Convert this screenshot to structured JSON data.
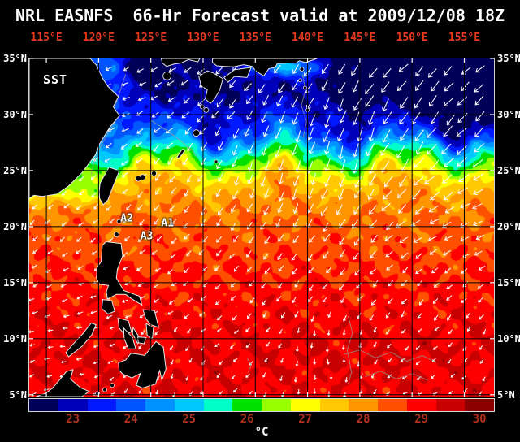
{
  "title": "NRL EASNFS  66-Hr Forecast valid at 2009/12/08 18Z",
  "colors": {
    "background": "#000000",
    "title_text": "#ffffff",
    "lon_label": "#e8381f",
    "lat_label": "#ffffff",
    "grid_line": "#000000",
    "frame": "#cfcfcf",
    "land": "#000000",
    "coastline": "#e9e9e9",
    "vector": "#ffffff",
    "annotation_text": "#ffffff",
    "colorbar_tick": "#b03020",
    "unit_label": "#ffffff",
    "bathymetry": "#9a9a9a"
  },
  "map": {
    "label_sst": "SST"
  },
  "chart_data": {
    "type": "heatmap",
    "title": "NRL EASNFS 66-Hr Forecast valid at 2009/12/08 18Z",
    "model": "NRL EASNFS",
    "forecast_hour": "66-Hr",
    "valid_time": "2009/12/08 18Z",
    "variable": "SST",
    "units": "°C",
    "lon_range": [
      113.36,
      157.84
    ],
    "lat_range": [
      4.84,
      35
    ],
    "lon_ticks": [
      115,
      120,
      125,
      130,
      135,
      140,
      145,
      150,
      155
    ],
    "lon_tick_labels": [
      "115°E",
      "120°E",
      "125°E",
      "130°E",
      "135°E",
      "140°E",
      "145°E",
      "150°E",
      "155°E"
    ],
    "lat_ticks": [
      35,
      30,
      25,
      20,
      15,
      10,
      5
    ],
    "lat_tick_labels": [
      "35°N",
      "30°N",
      "25°N",
      "20°N",
      "15°N",
      "10°N",
      "5°N"
    ],
    "colorbar": {
      "min": 22.25,
      "max": 30.25,
      "step": 0.5,
      "unit": "°C",
      "ticks": [
        23,
        24,
        25,
        26,
        27,
        28,
        29,
        30
      ],
      "colors": [
        "#000059",
        "#0000b8",
        "#0019ff",
        "#0055ff",
        "#0092ff",
        "#00c8ff",
        "#00ffc8",
        "#00e100",
        "#96ff00",
        "#ffff00",
        "#ffc800",
        "#ff9600",
        "#ff5000",
        "#ff0000",
        "#c80000",
        "#8c0000"
      ]
    },
    "sst_profile": {
      "lat": [
        35,
        33,
        31,
        29,
        28,
        27,
        26,
        25,
        24,
        22.5,
        20,
        17,
        13,
        9,
        4.84
      ],
      "temp": [
        22.4,
        22.6,
        23.0,
        23.6,
        24.1,
        25.1,
        26.1,
        26.9,
        27.5,
        28.0,
        28.4,
        28.7,
        29.0,
        29.25,
        29.15
      ]
    },
    "annotations": [
      {
        "label": "A1",
        "lon": 126.6,
        "lat": 20.3
      },
      {
        "label": "A2",
        "lon": 122.7,
        "lat": 20.7
      },
      {
        "label": "A3",
        "lon": 124.6,
        "lat": 19.1
      }
    ],
    "wind": {
      "pattern": "northeast-monsoon",
      "grid_spacing_px": 19
    },
    "land_polygons": [
      {
        "name": "china",
        "points": [
          [
            113.36,
            35
          ],
          [
            119.2,
            35
          ],
          [
            119.8,
            34.4
          ],
          [
            120.4,
            33.2
          ],
          [
            120.9,
            32.5
          ],
          [
            121.9,
            31.6
          ],
          [
            121.4,
            30.7
          ],
          [
            122.0,
            29.9
          ],
          [
            121.1,
            28.9
          ],
          [
            120.1,
            27.4
          ],
          [
            119.7,
            26.4
          ],
          [
            118.4,
            24.8
          ],
          [
            117.1,
            23.6
          ],
          [
            116.0,
            22.9
          ],
          [
            114.6,
            22.7
          ],
          [
            113.8,
            22.8
          ],
          [
            113.36,
            22.5
          ]
        ]
      },
      {
        "name": "korea",
        "points": [
          [
            126.0,
            35
          ],
          [
            129.7,
            35
          ],
          [
            129.5,
            34.7
          ],
          [
            128.6,
            34.9
          ],
          [
            127.9,
            34.6
          ],
          [
            127.2,
            34.5
          ],
          [
            126.5,
            34.3
          ],
          [
            126.1,
            34.6
          ]
        ]
      },
      {
        "name": "kyushu",
        "points": [
          [
            129.6,
            33.4
          ],
          [
            130.4,
            33.9
          ],
          [
            131.0,
            33.7
          ],
          [
            131.9,
            33.2
          ],
          [
            131.6,
            32.2
          ],
          [
            131.1,
            31.4
          ],
          [
            130.7,
            31.0
          ],
          [
            130.2,
            31.4
          ],
          [
            130.4,
            32.2
          ],
          [
            129.8,
            32.6
          ]
        ]
      },
      {
        "name": "shikoku",
        "points": [
          [
            132.0,
            33.3
          ],
          [
            133.0,
            34.0
          ],
          [
            134.6,
            34.2
          ],
          [
            134.2,
            33.3
          ],
          [
            133.0,
            33.4
          ],
          [
            132.4,
            32.9
          ]
        ]
      },
      {
        "name": "honshu",
        "points": [
          [
            130.9,
            35
          ],
          [
            140.9,
            35
          ],
          [
            140.6,
            34.9
          ],
          [
            139.8,
            34.65
          ],
          [
            139.2,
            34.8
          ],
          [
            138.9,
            34.6
          ],
          [
            138.3,
            34.6
          ],
          [
            137.1,
            34.55
          ],
          [
            136.9,
            34.2
          ],
          [
            136.3,
            34.1
          ],
          [
            135.8,
            33.45
          ],
          [
            135.1,
            33.85
          ],
          [
            134.7,
            34.3
          ],
          [
            133.9,
            34.45
          ],
          [
            132.9,
            34.25
          ],
          [
            132.1,
            34.3
          ],
          [
            131.3,
            34.35
          ],
          [
            130.9,
            34.65
          ]
        ]
      },
      {
        "name": "taiwan",
        "points": [
          [
            120.05,
            23.1
          ],
          [
            120.15,
            23.9
          ],
          [
            121.0,
            25.3
          ],
          [
            121.65,
            25.1
          ],
          [
            121.95,
            24.9
          ],
          [
            121.3,
            23.4
          ],
          [
            120.9,
            22.4
          ],
          [
            120.45,
            21.95
          ],
          [
            120.1,
            22.5
          ]
        ]
      },
      {
        "name": "okinawa",
        "points": [
          [
            127.65,
            26.08
          ],
          [
            128.0,
            26.45
          ],
          [
            128.3,
            26.85
          ],
          [
            128.0,
            26.9
          ],
          [
            127.7,
            26.5
          ],
          [
            127.5,
            26.15
          ]
        ]
      },
      {
        "name": "luzon",
        "points": [
          [
            119.85,
            16.35
          ],
          [
            120.25,
            16.9
          ],
          [
            120.35,
            18.3
          ],
          [
            120.7,
            18.65
          ],
          [
            122.15,
            18.5
          ],
          [
            122.3,
            17.4
          ],
          [
            121.8,
            16.2
          ],
          [
            121.7,
            15.4
          ],
          [
            122.4,
            14.3
          ],
          [
            123.9,
            13.8
          ],
          [
            124.15,
            13.0
          ],
          [
            123.1,
            13.6
          ],
          [
            122.6,
            13.95
          ],
          [
            121.7,
            13.95
          ],
          [
            120.85,
            13.55
          ],
          [
            120.75,
            14.2
          ],
          [
            120.95,
            14.75
          ],
          [
            120.1,
            14.85
          ],
          [
            119.8,
            15.4
          ]
        ]
      },
      {
        "name": "mindoro",
        "points": [
          [
            120.4,
            13.5
          ],
          [
            121.25,
            13.4
          ],
          [
            121.55,
            12.45
          ],
          [
            120.9,
            12.2
          ],
          [
            120.3,
            12.7
          ]
        ]
      },
      {
        "name": "panay",
        "points": [
          [
            121.85,
            11.85
          ],
          [
            122.85,
            11.6
          ],
          [
            123.15,
            10.6
          ],
          [
            122.5,
            10.4
          ],
          [
            121.95,
            10.95
          ]
        ]
      },
      {
        "name": "negros",
        "points": [
          [
            122.4,
            10.95
          ],
          [
            123.25,
            10.1
          ],
          [
            123.55,
            9.1
          ],
          [
            122.85,
            9.1
          ],
          [
            122.45,
            10.0
          ]
        ]
      },
      {
        "name": "cebu",
        "points": [
          [
            123.3,
            11.0
          ],
          [
            124.05,
            9.9
          ],
          [
            123.75,
            9.55
          ],
          [
            123.25,
            10.45
          ]
        ]
      },
      {
        "name": "bohol",
        "points": [
          [
            123.75,
            10.15
          ],
          [
            124.55,
            10.1
          ],
          [
            124.35,
            9.55
          ],
          [
            123.8,
            9.65
          ]
        ]
      },
      {
        "name": "samar",
        "points": [
          [
            124.25,
            12.6
          ],
          [
            125.35,
            12.5
          ],
          [
            125.75,
            11.0
          ],
          [
            125.0,
            11.25
          ],
          [
            124.5,
            11.8
          ]
        ]
      },
      {
        "name": "leyte",
        "points": [
          [
            124.55,
            11.35
          ],
          [
            125.25,
            11.0
          ],
          [
            125.15,
            10.0
          ],
          [
            124.65,
            10.3
          ]
        ]
      },
      {
        "name": "mindanao",
        "points": [
          [
            121.9,
            7.85
          ],
          [
            122.6,
            8.1
          ],
          [
            123.1,
            8.7
          ],
          [
            123.9,
            8.6
          ],
          [
            124.4,
            8.5
          ],
          [
            124.85,
            9.0
          ],
          [
            125.5,
            9.75
          ],
          [
            126.2,
            9.25
          ],
          [
            126.45,
            7.3
          ],
          [
            126.05,
            6.3
          ],
          [
            125.85,
            7.2
          ],
          [
            125.45,
            5.95
          ],
          [
            124.2,
            5.6
          ],
          [
            123.6,
            5.85
          ],
          [
            124.0,
            6.9
          ],
          [
            123.2,
            6.5
          ],
          [
            122.3,
            6.85
          ],
          [
            121.95,
            7.2
          ]
        ]
      },
      {
        "name": "palawan",
        "points": [
          [
            117.15,
            8.4
          ],
          [
            118.45,
            9.35
          ],
          [
            119.35,
            10.35
          ],
          [
            119.75,
            11.25
          ],
          [
            119.3,
            11.4
          ],
          [
            118.5,
            10.45
          ],
          [
            117.5,
            9.45
          ],
          [
            116.85,
            8.75
          ]
        ]
      },
      {
        "name": "borneo",
        "points": [
          [
            114.0,
            4.84
          ],
          [
            114.9,
            5.1
          ],
          [
            115.6,
            5.6
          ],
          [
            116.2,
            6.25
          ],
          [
            116.9,
            7.05
          ],
          [
            117.55,
            7.25
          ],
          [
            117.3,
            6.4
          ],
          [
            118.3,
            5.6
          ],
          [
            119.1,
            5.3
          ],
          [
            118.4,
            4.84
          ]
        ]
      }
    ],
    "land_dots": [
      [
        126.55,
        33.45,
        5
      ],
      [
        129.35,
        28.35,
        4
      ],
      [
        125.3,
        24.75,
        3
      ],
      [
        124.2,
        24.4,
        3.5
      ],
      [
        123.8,
        24.3,
        3.5
      ],
      [
        121.95,
        20.45,
        2.5
      ],
      [
        121.7,
        19.3,
        3
      ],
      [
        139.45,
        34.05,
        2.5
      ],
      [
        139.3,
        33.05,
        2
      ],
      [
        139.75,
        32.4,
        2
      ],
      [
        131.25,
        25.8,
        2
      ],
      [
        119.9,
        5.1,
        2.5
      ],
      [
        120.6,
        5.45,
        2.5
      ],
      [
        121.3,
        5.85,
        2.5
      ],
      [
        140.0,
        30.4,
        2
      ],
      [
        130.3,
        30.4,
        3
      ],
      [
        129.9,
        30.7,
        2.5
      ]
    ],
    "bathymetry_contours": [
      [
        [
          122.6,
          33.6
        ],
        [
          122.1,
          32.2
        ],
        [
          121.5,
          30.6
        ],
        [
          121.6,
          29.4
        ],
        [
          120.8,
          28.2
        ],
        [
          120.0,
          26.8
        ],
        [
          119.5,
          25.6
        ],
        [
          119.3,
          24.6
        ]
      ],
      [
        [
          125.0,
          29.5
        ],
        [
          126.5,
          28.6
        ],
        [
          127.8,
          27.7
        ],
        [
          128.8,
          26.9
        ],
        [
          129.5,
          26.2
        ]
      ],
      [
        [
          139.5,
          33.6
        ],
        [
          139.8,
          32.2
        ],
        [
          139.4,
          30.8
        ],
        [
          139.9,
          29.4
        ],
        [
          139.6,
          28.0
        ]
      ],
      [
        [
          143.5,
          8.6
        ],
        [
          145.0,
          9.0
        ],
        [
          146.5,
          8.3
        ],
        [
          148.0,
          8.8
        ],
        [
          149.5,
          8.0
        ],
        [
          151.0,
          8.5
        ],
        [
          152.3,
          7.9
        ]
      ],
      [
        [
          145.5,
          6.6
        ],
        [
          147.0,
          7.1
        ],
        [
          148.5,
          6.4
        ],
        [
          150.0,
          6.9
        ],
        [
          151.5,
          6.3
        ]
      ],
      [
        [
          134.2,
          8.3
        ],
        [
          134.6,
          7.6
        ],
        [
          134.3,
          7.0
        ]
      ],
      [
        [
          143.9,
          12.0
        ],
        [
          144.3,
          10.5
        ],
        [
          143.8,
          9.0
        ],
        [
          144.2,
          7.0
        ],
        [
          143.9,
          6.0
        ]
      ]
    ]
  }
}
